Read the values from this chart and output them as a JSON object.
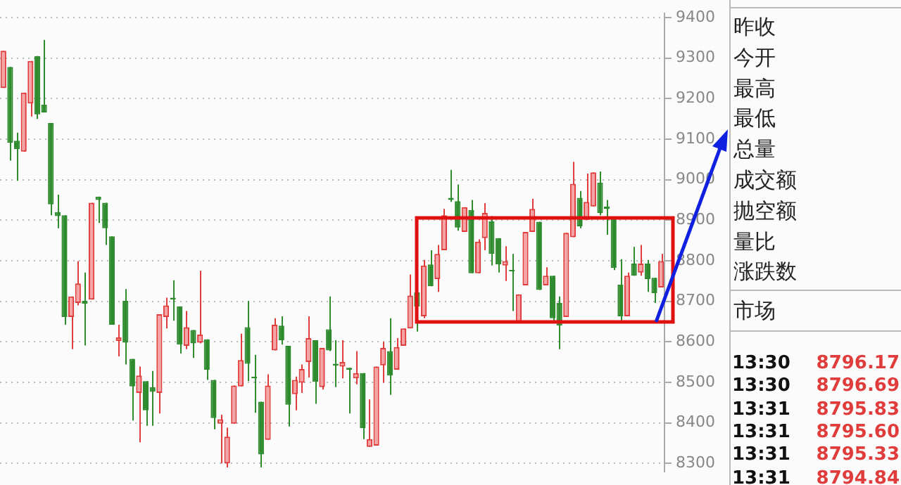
{
  "chart_data": [
    {
      "type": "candlestick",
      "categories": [
        null,
        null,
        null,
        null,
        null,
        null,
        null,
        null,
        null,
        null,
        null,
        null,
        null,
        null,
        null,
        null,
        null,
        null,
        null,
        null,
        null,
        null,
        null,
        null,
        null,
        null,
        null,
        null,
        null,
        null,
        null,
        null,
        null,
        null,
        null,
        null,
        null,
        null,
        null,
        null,
        null,
        null,
        null,
        null,
        null,
        null,
        null,
        null,
        null,
        null,
        null,
        null,
        null,
        null,
        null,
        null,
        null,
        null,
        null,
        null,
        null,
        null,
        null,
        null,
        null,
        null,
        null,
        null,
        null,
        null,
        null,
        null,
        null,
        null,
        null,
        null,
        null,
        null,
        null,
        null,
        null,
        null,
        null,
        null,
        null,
        null,
        null,
        null,
        null,
        null,
        null,
        null,
        null,
        null,
        null,
        null,
        null,
        null
      ],
      "ohlc": [
        [
          9226,
          9318,
          9226,
          9318
        ],
        [
          9278,
          9278,
          9047,
          9091
        ],
        [
          9096,
          9116,
          8997,
          9075
        ],
        [
          9069,
          9215,
          9069,
          9215
        ],
        [
          9188,
          9293,
          9156,
          9293
        ],
        [
          9305,
          9305,
          9150,
          9161
        ],
        [
          9185,
          9345,
          9166,
          9166
        ],
        [
          9140,
          9140,
          8912,
          8939
        ],
        [
          8920,
          8963,
          8880,
          8910
        ],
        [
          8912,
          8912,
          8642,
          8661
        ],
        [
          8661,
          8712,
          8582,
          8712
        ],
        [
          8696,
          8799,
          8690,
          8744
        ],
        [
          8701,
          8771,
          8591,
          8694
        ],
        [
          8704,
          8943,
          8704,
          8943
        ],
        [
          8958,
          8958,
          8893,
          8950
        ],
        [
          8943,
          8943,
          8839,
          8880
        ],
        [
          8860,
          8860,
          8642,
          8642
        ],
        [
          8602,
          8642,
          8564,
          8611
        ],
        [
          8701,
          8730,
          8544,
          8598
        ],
        [
          8558,
          8558,
          8406,
          8490
        ],
        [
          8474,
          8539,
          8352,
          8517
        ],
        [
          8503,
          8503,
          8393,
          8431
        ],
        [
          8488,
          8528,
          8393,
          8477
        ],
        [
          8474,
          8668,
          8423,
          8668
        ],
        [
          8661,
          8709,
          8633,
          8690
        ],
        [
          8709,
          8752,
          8652,
          8704
        ],
        [
          8687,
          8687,
          8571,
          8593
        ],
        [
          8590,
          8676,
          8582,
          8636
        ],
        [
          8629,
          8629,
          8560,
          8596
        ],
        [
          8598,
          8775,
          8596,
          8618
        ],
        [
          8606,
          8606,
          8506,
          8531
        ],
        [
          8506,
          8506,
          8384,
          8412
        ],
        [
          8398,
          8420,
          8300,
          8409
        ],
        [
          8300,
          8388,
          8290,
          8366
        ],
        [
          8398,
          8492,
          8398,
          8492
        ],
        [
          8490,
          8620,
          8490,
          8555
        ],
        [
          8636,
          8701,
          8503,
          8546
        ],
        [
          8514,
          8568,
          8425,
          8510
        ],
        [
          8452,
          8452,
          8290,
          8322
        ],
        [
          8358,
          8520,
          8358,
          8492
        ],
        [
          8579,
          8658,
          8579,
          8642
        ],
        [
          8640,
          8663,
          8593,
          8604
        ],
        [
          8590,
          8590,
          8391,
          8445
        ],
        [
          8471,
          8514,
          8431,
          8506
        ],
        [
          8499,
          8544,
          8474,
          8533
        ],
        [
          8550,
          8663,
          8512,
          8609
        ],
        [
          8604,
          8604,
          8447,
          8501
        ],
        [
          8488,
          8585,
          8482,
          8585
        ],
        [
          8631,
          8712,
          8577,
          8579
        ],
        [
          8546,
          8604,
          8488,
          8541
        ],
        [
          8539,
          8604,
          8510,
          8550
        ],
        [
          8536,
          8536,
          8423,
          8531
        ],
        [
          8510,
          8577,
          8495,
          8523
        ],
        [
          8523,
          8523,
          8360,
          8387
        ],
        [
          8341,
          8458,
          8341,
          8360
        ],
        [
          8344,
          8539,
          8344,
          8539
        ],
        [
          8542,
          8600,
          8499,
          8585
        ],
        [
          8577,
          8658,
          8469,
          8517
        ],
        [
          8531,
          8609,
          8531,
          8587
        ],
        [
          8590,
          8633,
          8590,
          8633
        ],
        [
          8633,
          8766,
          8633,
          8714
        ],
        [
          8722,
          8722,
          8625,
          8687
        ],
        [
          8663,
          8802,
          8658,
          8788
        ],
        [
          8791,
          8826,
          8737,
          8737
        ],
        [
          8755,
          8839,
          8723,
          8817
        ],
        [
          8826,
          8928,
          8826,
          8912
        ],
        [
          8955,
          9024,
          8945,
          8950
        ],
        [
          8947,
          8988,
          8874,
          8882
        ],
        [
          8871,
          8932,
          8871,
          8932
        ],
        [
          8925,
          8950,
          8769,
          8769
        ],
        [
          8769,
          8853,
          8769,
          8847
        ],
        [
          8856,
          8942,
          8826,
          8918
        ],
        [
          8897,
          8910,
          8788,
          8817
        ],
        [
          8856,
          8856,
          8771,
          8791
        ],
        [
          8788,
          8836,
          8750,
          8799
        ],
        [
          8777,
          8817,
          8676,
          8774
        ],
        [
          8647,
          8717,
          8647,
          8717
        ],
        [
          8739,
          8871,
          8739,
          8871
        ],
        [
          8871,
          8953,
          8871,
          8928
        ],
        [
          8896,
          8896,
          8728,
          8728
        ],
        [
          8739,
          8784,
          8739,
          8763
        ],
        [
          8763,
          8763,
          8650,
          8658
        ],
        [
          8696,
          8712,
          8582,
          8640
        ],
        [
          8661,
          8869,
          8661,
          8869
        ],
        [
          8858,
          9044,
          8858,
          8990
        ],
        [
          8955,
          8972,
          8880,
          8885
        ],
        [
          8901,
          9015,
          8901,
          8945
        ],
        [
          8934,
          9018,
          8934,
          9018
        ],
        [
          8993,
          9020,
          8912,
          8918
        ],
        [
          8934,
          8950,
          8864,
          8928
        ],
        [
          8907,
          8907,
          8777,
          8782
        ],
        [
          8741,
          8804,
          8652,
          8663
        ],
        [
          8663,
          8771,
          8663,
          8763
        ],
        [
          8793,
          8834,
          8763,
          8763
        ],
        [
          8771,
          8839,
          8763,
          8793
        ],
        [
          8793,
          8802,
          8723,
          8755
        ],
        [
          8758,
          8758,
          8696,
          8720
        ],
        [
          8734,
          8817,
          8734,
          8799
        ]
      ],
      "ylim": [
        8280,
        9410
      ],
      "yticks": [
        8300,
        8400,
        8500,
        8600,
        8700,
        8800,
        8900,
        9000,
        9100,
        9200,
        9300,
        9400
      ],
      "grid": "y",
      "tick_labels": "y"
    },
    {
      "type": "other",
      "annotations": [
        "昨收",
        "今开",
        "最高",
        "最低",
        "总量",
        "成交额",
        "抛空额",
        "量比",
        "涨跌数",
        "市场",
        "13:30",
        "8796.17",
        "13:30",
        "8796.69",
        "13:31",
        "8795.83",
        "13:31",
        "8795.60",
        "13:31",
        "8795.33",
        "13:31",
        "8794.84"
      ],
      "color": "#e03c3c"
    }
  ]
}
